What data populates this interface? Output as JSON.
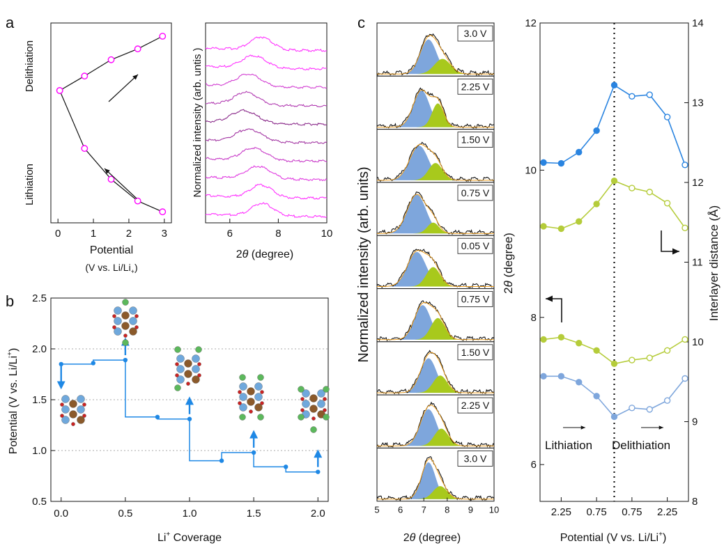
{
  "panel_labels": {
    "a": "a",
    "b": "b",
    "c": "c"
  },
  "colors": {
    "magenta": "#ff00ff",
    "purple_dark": "#7a1e7e",
    "blue_link": "#1e88e5",
    "blue_fill": "#7ea6dc",
    "green_fill": "#a8c91c",
    "orange_env": "#f0a020",
    "green_line": "#b5cc3a",
    "lightblue_line": "#7ea6dc",
    "blue_top": "#2a84e0",
    "atom_gray": "#9e9e9e",
    "atom_brown": "#8b5a2b",
    "atom_blue": "#6fa8dc",
    "atom_red": "#cc2222",
    "atom_green": "#5cb85c"
  },
  "chart_data": [
    {
      "id": "a-left",
      "type": "scatter",
      "ylabel_top": "Delithiation",
      "ylabel_bottom": "Lithiation",
      "xlabel": "Potential",
      "xlabel2": "(V vs. Li/Li",
      "xlabel2_sub": "+",
      "xlabel2_end": ")",
      "xlim": [
        -0.2,
        3.2
      ],
      "ylim": [
        0,
        10
      ],
      "xticks": [
        "0",
        "1",
        "2",
        "3"
      ],
      "xtick_values": [
        0,
        1,
        2,
        3
      ],
      "lithiation": {
        "x": [
          2.95,
          2.25,
          1.5,
          0.75,
          0.05
        ],
        "y": [
          0.3,
          0.9,
          2.1,
          3.8,
          7.0
        ]
      },
      "delithiation": {
        "x": [
          0.05,
          0.75,
          1.5,
          2.25,
          2.95
        ],
        "y": [
          7.0,
          7.8,
          8.7,
          9.3,
          10.0
        ]
      }
    },
    {
      "id": "a-right",
      "type": "line",
      "ylabel": "Normalized intensity (arb. untis )",
      "xlabel": "2θ (degree)",
      "xlabel_theta": "θ",
      "xlabel_rest": " (degree)",
      "xlabel_prefix": "2",
      "xlim": [
        5,
        10
      ],
      "xticks": [
        "6",
        "8",
        "10"
      ],
      "xtick_values": [
        6,
        8,
        10
      ],
      "series": [
        {
          "peak": 7.3,
          "width": 0.45,
          "color": "#ff33ff"
        },
        {
          "peak": 7.0,
          "width": 0.5,
          "color": "#ff33ff"
        },
        {
          "peak": 6.8,
          "width": 0.5,
          "color": "#d23fd2"
        },
        {
          "peak": 6.7,
          "width": 0.5,
          "color": "#b23db2"
        },
        {
          "peak": 6.6,
          "width": 0.55,
          "color": "#8a2a8a"
        },
        {
          "peak": 6.8,
          "width": 0.55,
          "color": "#a235a2"
        },
        {
          "peak": 7.0,
          "width": 0.5,
          "color": "#c83cc8"
        },
        {
          "peak": 7.2,
          "width": 0.5,
          "color": "#e03be0"
        },
        {
          "peak": 7.3,
          "width": 0.45,
          "color": "#ff33ff"
        },
        {
          "peak": 7.35,
          "width": 0.45,
          "color": "#ff33ff"
        }
      ]
    },
    {
      "id": "b",
      "type": "line",
      "xlabel": "Li",
      "xlabel_sup": "+",
      "xlabel_end": " Coverage",
      "ylabel": "Potential (V vs. Li/Li",
      "ylabel_sup": "+",
      "ylabel_end": ")",
      "xlim": [
        -0.08,
        2.08
      ],
      "ylim": [
        0.5,
        2.5
      ],
      "xticks": [
        "0.0",
        "0.5",
        "1.0",
        "1.5",
        "2.0"
      ],
      "xtick_values": [
        0,
        0.5,
        1.0,
        1.5,
        2.0
      ],
      "yticks": [
        "0.5",
        "1.0",
        "1.5",
        "2.0",
        "2.5"
      ],
      "ytick_values": [
        0.5,
        1.0,
        1.5,
        2.0,
        2.5
      ],
      "dashed_y": [
        1.0,
        1.5,
        2.0
      ],
      "points": {
        "x": [
          0.0,
          0.25,
          0.5,
          0.75,
          1.0,
          1.25,
          1.5,
          1.75,
          2.0
        ],
        "y": [
          1.85,
          1.86,
          1.89,
          1.33,
          1.31,
          0.9,
          0.98,
          0.84,
          0.79
        ]
      },
      "step_path": [
        [
          0,
          1.85
        ],
        [
          0.25,
          1.85
        ],
        [
          0.25,
          1.89
        ],
        [
          0.5,
          1.89
        ],
        [
          0.5,
          1.33
        ],
        [
          0.75,
          1.33
        ],
        [
          0.75,
          1.31
        ],
        [
          1.0,
          1.31
        ],
        [
          1.0,
          0.9
        ],
        [
          1.25,
          0.9
        ],
        [
          1.25,
          0.98
        ],
        [
          1.5,
          0.98
        ],
        [
          1.5,
          0.84
        ],
        [
          1.75,
          0.84
        ],
        [
          1.75,
          0.79
        ],
        [
          2.0,
          0.79
        ]
      ],
      "arrows_up": [
        0.5,
        1.0,
        1.5,
        2.0
      ],
      "arrow_down": 0.0
    },
    {
      "id": "c-left",
      "type": "area",
      "ylabel": "Normalized intensity (arb. units)",
      "xlabel_prefix": "2",
      "xlabel_theta": "θ",
      "xlabel_rest": " (degree)",
      "xlim": [
        5,
        10
      ],
      "xticks": [
        "5",
        "6",
        "7",
        "8",
        "9",
        "10"
      ],
      "xtick_values": [
        5,
        6,
        7,
        8,
        9,
        10
      ],
      "labels": [
        "3.0 V",
        "2.25 V",
        "1.50 V",
        "0.75 V",
        "0.05 V",
        "0.75 V",
        "1.50 V",
        "2.25 V",
        "3.0 V"
      ],
      "peaks": [
        {
          "b": [
            7.2,
            0.35,
            0.8
          ],
          "g": [
            7.8,
            0.35,
            0.35
          ]
        },
        {
          "b": [
            6.9,
            0.35,
            0.85
          ],
          "g": [
            7.6,
            0.25,
            0.55
          ]
        },
        {
          "b": [
            6.8,
            0.4,
            0.8
          ],
          "g": [
            7.5,
            0.3,
            0.4
          ]
        },
        {
          "b": [
            6.7,
            0.4,
            0.9
          ],
          "g": [
            7.4,
            0.25,
            0.25
          ]
        },
        {
          "b": [
            6.7,
            0.4,
            0.8
          ],
          "g": [
            7.4,
            0.3,
            0.45
          ]
        },
        {
          "b": [
            6.95,
            0.35,
            0.8
          ],
          "g": [
            7.6,
            0.3,
            0.5
          ]
        },
        {
          "b": [
            7.2,
            0.35,
            0.8
          ],
          "g": [
            7.7,
            0.3,
            0.4
          ]
        },
        {
          "b": [
            7.2,
            0.35,
            0.85
          ],
          "g": [
            7.75,
            0.3,
            0.4
          ]
        },
        {
          "b": [
            7.2,
            0.3,
            0.85
          ],
          "g": [
            7.7,
            0.3,
            0.3
          ]
        }
      ]
    },
    {
      "id": "c-right",
      "type": "line",
      "xlabel": "Potential (V vs. Li/Li",
      "xlabel_sup": "+",
      "xlabel_end": ")",
      "ylabel_left_prefix": "2",
      "ylabel_left_theta": "θ",
      "ylabel_left_rest": " (degree)",
      "ylabel_right": "Interlayer distance (Å)",
      "xticks": [
        "2.25",
        "0.75",
        "0.75",
        "2.25"
      ],
      "xtick_index": [
        1,
        3,
        5,
        7
      ],
      "ylim_left": [
        5.5,
        12
      ],
      "yticks_left": [
        "6",
        "8",
        "10",
        "12"
      ],
      "ytick_values_left": [
        6,
        8,
        10,
        12
      ],
      "ylim_right": [
        8,
        14
      ],
      "yticks_right": [
        "8",
        "9",
        "10",
        "11",
        "12",
        "13",
        "14"
      ],
      "ytick_values_right": [
        8,
        9,
        10,
        11,
        12,
        13,
        14
      ],
      "annotation_left": "Lithiation",
      "annotation_right": "Delithiation",
      "series": [
        {
          "axis": "right",
          "color": "#2a84e0",
          "values": [
            12.25,
            12.24,
            12.38,
            12.65,
            13.22,
            13.08,
            13.1,
            12.82,
            12.22
          ]
        },
        {
          "axis": "right",
          "color": "#b5cc3a",
          "values": [
            11.45,
            11.42,
            11.51,
            11.73,
            12.02,
            11.93,
            11.88,
            11.74,
            11.43
          ]
        },
        {
          "axis": "left",
          "color": "#b5cc3a",
          "values": [
            7.7,
            7.73,
            7.65,
            7.55,
            7.37,
            7.42,
            7.45,
            7.55,
            7.7
          ]
        },
        {
          "axis": "left",
          "color": "#7ea6dc",
          "values": [
            7.2,
            7.2,
            7.12,
            6.93,
            6.65,
            6.77,
            6.75,
            6.87,
            7.17
          ]
        }
      ]
    }
  ]
}
